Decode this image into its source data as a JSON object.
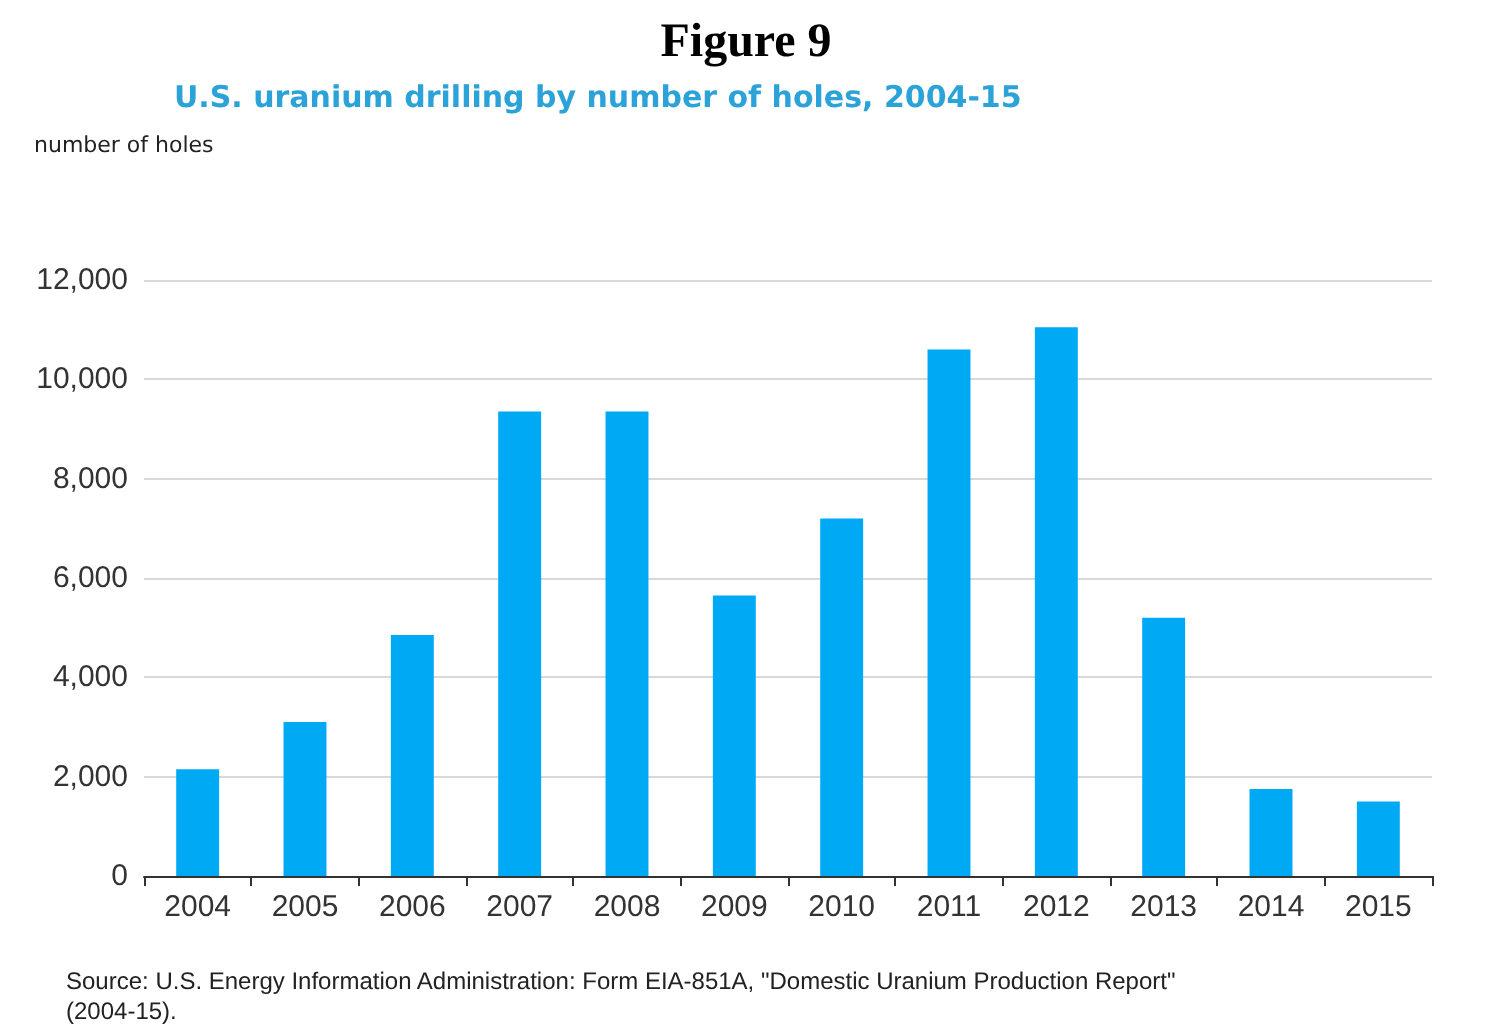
{
  "chart_data": {
    "type": "bar",
    "title": "Figure 9",
    "subtitle": "U.S. uranium drilling by number of holes, 2004-15",
    "ylabel": "number of holes",
    "categories": [
      "2004",
      "2005",
      "2006",
      "2007",
      "2008",
      "2009",
      "2010",
      "2011",
      "2012",
      "2013",
      "2014",
      "2015"
    ],
    "values": [
      2150,
      3100,
      4850,
      9350,
      9350,
      5650,
      7200,
      10600,
      11050,
      5200,
      1750,
      1500
    ],
    "color": "#00a9f4",
    "ylim": [
      0,
      12000
    ],
    "yticks": [
      0,
      {
        "value": 2000,
        "label": "2,000"
      },
      {
        "value": 4000,
        "label": "4,000"
      },
      {
        "value": 6000,
        "label": "6,000"
      },
      {
        "value": 8000,
        "label": "8,000"
      },
      {
        "value": 10000,
        "label": "10,000"
      },
      {
        "value": 12000,
        "label": "12,000"
      }
    ],
    "grid": "y",
    "annotations": [
      "Source: U.S. Energy Information Administration: Form EIA-851A, \"Domestic Uranium Production Report\" (2004-15)."
    ]
  }
}
